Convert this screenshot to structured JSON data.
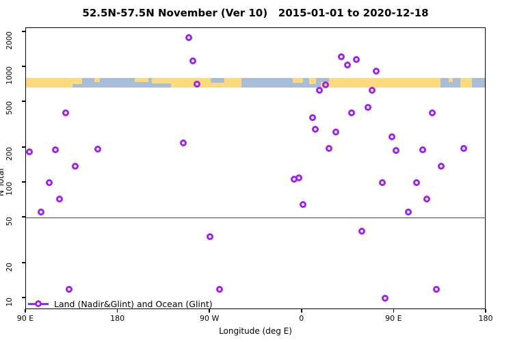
{
  "title": "52.5N-57.5N November (Ver 10)   2015-01-01 to 2020-12-18",
  "axes": {
    "y_label": "N Total",
    "x_label": "Longitude (deg E)",
    "y_tick_values": [
      10,
      20,
      50,
      100,
      200,
      500,
      1000,
      2000
    ],
    "x_ticks": [
      {
        "label": "90 E",
        "lon": 90
      },
      {
        "label": "180",
        "lon": 180
      },
      {
        "label": "90 W",
        "lon": 270
      },
      {
        "label": "0",
        "lon": 360
      },
      {
        "label": "90 E",
        "lon": 450
      },
      {
        "label": "180",
        "lon": 540
      }
    ]
  },
  "legend": {
    "label": "Land (Nadir&Glint) and Ocean (Glint)"
  },
  "colors": {
    "marker": "#A020F0",
    "land": "#FEDA7E",
    "ocean": "#A7BDD8",
    "ref_line": "#474747"
  },
  "chart_data": {
    "type": "scatter",
    "title": "52.5N-57.5N November (Ver 10)   2015-01-01 to 2020-12-18",
    "xlabel": "Longitude (deg E)",
    "ylabel": "N Total",
    "x_axis_note": "longitude axis wraps: 90E, 180, 90W, 0, 90E, 180 (stored as continuous 90..540 deg E)",
    "y_scale": "log10",
    "ylim": [
      8,
      2170
    ],
    "reference_line_y": 50,
    "points_lon_n": [
      [
        93,
        185
      ],
      [
        105,
        56
      ],
      [
        113,
        100
      ],
      [
        119,
        192
      ],
      [
        123,
        72
      ],
      [
        129,
        400
      ],
      [
        132,
        12
      ],
      [
        138,
        139
      ],
      [
        160,
        195
      ],
      [
        244,
        220
      ],
      [
        249,
        1800
      ],
      [
        253,
        1130
      ],
      [
        257,
        707
      ],
      [
        270,
        34
      ],
      [
        279,
        12
      ],
      [
        352,
        107
      ],
      [
        357,
        110
      ],
      [
        361,
        65
      ],
      [
        370,
        365
      ],
      [
        373,
        290
      ],
      [
        377,
        630
      ],
      [
        383,
        700
      ],
      [
        386,
        198
      ],
      [
        393,
        274
      ],
      [
        398,
        1230
      ],
      [
        404,
        1040
      ],
      [
        408,
        400
      ],
      [
        413,
        1160
      ],
      [
        418,
        38
      ],
      [
        424,
        450
      ],
      [
        428,
        630
      ],
      [
        432,
        920
      ],
      [
        438,
        100
      ],
      [
        441,
        10
      ],
      [
        448,
        250
      ],
      [
        452,
        190
      ],
      [
        464,
        56
      ],
      [
        472,
        100
      ],
      [
        478,
        192
      ],
      [
        482,
        72
      ],
      [
        487,
        400
      ],
      [
        491,
        12
      ],
      [
        496,
        138
      ],
      [
        518,
        198
      ]
    ],
    "map_strip": {
      "description": "land(gold)/ocean(blue) mask band across all longitudes",
      "n_top": 800,
      "n_bottom": 665,
      "land_segments": [
        [
          90,
          135.5,
          0,
          1
        ],
        [
          135.5,
          145,
          0,
          0.6
        ],
        [
          157,
          162,
          0,
          0.4
        ],
        [
          196,
          210,
          0,
          0.4
        ],
        [
          213,
          232,
          0,
          0.55
        ],
        [
          232,
          270.5,
          0,
          1
        ],
        [
          270.5,
          284,
          0.5,
          0.5
        ],
        [
          284,
          300.5,
          0,
          1
        ],
        [
          351,
          361,
          0,
          0.5
        ],
        [
          367,
          373.5,
          0,
          0.6
        ],
        [
          378,
          386,
          0.4,
          0.6
        ],
        [
          386,
          495,
          0,
          1
        ],
        [
          503,
          507,
          0,
          0.4
        ],
        [
          514.5,
          526,
          0,
          1
        ]
      ]
    }
  }
}
